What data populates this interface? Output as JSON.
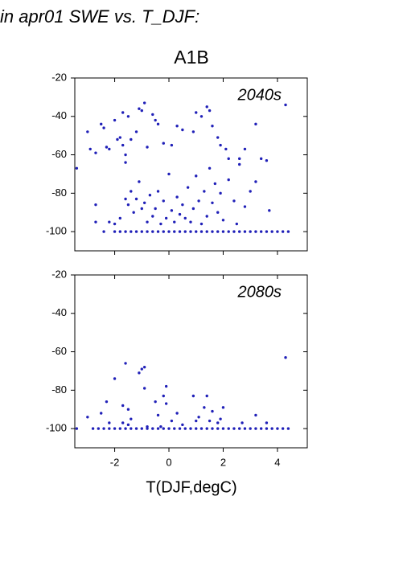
{
  "chart_data": [
    {
      "type": "scatter",
      "title": "in apr01 SWE vs. T_DJF:",
      "subtitle": "A1B",
      "annotation": "2040s",
      "color": "#2020b8",
      "xlim": [
        -3.47,
        5.1
      ],
      "ylim": [
        -110,
        -20
      ],
      "xticks": [
        -2,
        0,
        2,
        4
      ],
      "yticks": [
        -100,
        -80,
        -60,
        -40,
        -20
      ],
      "x": [
        -3.4,
        -3.0,
        -2.9,
        -2.7,
        -2.5,
        -2.4,
        -2.3,
        -2.2,
        -2.0,
        -1.9,
        -1.8,
        -1.7,
        -1.7,
        -1.6,
        -1.6,
        -1.5,
        -1.4,
        -1.2,
        -1.1,
        -1.0,
        -0.9,
        -0.8,
        -0.6,
        -0.5,
        -0.4,
        -0.2,
        0.1,
        0.3,
        0.5,
        0.9,
        1.0,
        1.2,
        1.4,
        1.5,
        1.6,
        1.8,
        1.9,
        2.1,
        2.2,
        2.6,
        2.8,
        3.2,
        3.4,
        3.6,
        4.3,
        -2.7,
        -2.2,
        -2.0,
        -1.8,
        -1.6,
        -1.5,
        -1.4,
        -1.3,
        -1.2,
        -1.1,
        -1.0,
        -0.9,
        -0.8,
        -0.7,
        -0.6,
        -0.5,
        -0.4,
        -0.3,
        -0.2,
        -0.1,
        0.0,
        0.1,
        0.2,
        0.3,
        0.4,
        0.5,
        0.6,
        0.7,
        0.8,
        0.9,
        1.0,
        1.1,
        1.2,
        1.3,
        1.4,
        1.5,
        1.6,
        1.7,
        1.8,
        1.9,
        2.0,
        2.2,
        2.4,
        2.5,
        2.6,
        2.8,
        3.0,
        3.2,
        3.7,
        -2.7,
        -2.4,
        -2.0,
        -1.8,
        -1.6,
        -1.4,
        -1.2,
        -1.0,
        -0.8,
        -0.6,
        -0.4,
        -0.2,
        0.0,
        0.2,
        0.4,
        0.6,
        0.8,
        1.0,
        1.2,
        1.4,
        1.6,
        1.8,
        2.0,
        2.2,
        2.4,
        2.6,
        2.8,
        3.0,
        3.2,
        3.4,
        3.6,
        3.8,
        4.0,
        4.2,
        4.4
      ],
      "values": [
        -67,
        -48,
        -57,
        -59,
        -44,
        -46,
        -56,
        -57,
        -42,
        -52,
        -51,
        -38,
        -55,
        -60,
        -64,
        -40,
        -52,
        -48,
        -36,
        -37,
        -33,
        -56,
        -39,
        -42,
        -44,
        -54,
        -55,
        -45,
        -47,
        -48,
        -38,
        -40,
        -35,
        -37,
        -45,
        -51,
        -55,
        -57,
        -62,
        -62,
        -57,
        -44,
        -62,
        -63,
        -34,
        -86,
        -95,
        -96,
        -93,
        -83,
        -86,
        -79,
        -90,
        -83,
        -74,
        -88,
        -85,
        -95,
        -81,
        -92,
        -88,
        -79,
        -96,
        -84,
        -93,
        -70,
        -89,
        -95,
        -82,
        -91,
        -86,
        -93,
        -77,
        -95,
        -88,
        -71,
        -84,
        -96,
        -79,
        -92,
        -67,
        -85,
        -75,
        -90,
        -80,
        -94,
        -73,
        -84,
        -96,
        -65,
        -87,
        -79,
        -74,
        -89,
        -95,
        -100,
        -100,
        -100,
        -100,
        -100,
        -100,
        -100,
        -100,
        -100,
        -100,
        -100,
        -100,
        -100,
        -100,
        -100,
        -100,
        -100,
        -100,
        -100,
        -100,
        -100,
        -100,
        -100,
        -100,
        -100,
        -100,
        -100,
        -100,
        -100,
        -100,
        -100,
        -100,
        -100,
        -100
      ]
    },
    {
      "type": "scatter",
      "annotation": "2080s",
      "x_label": "T(DJF,degC)",
      "color": "#2020b8",
      "xlim": [
        -3.47,
        5.1
      ],
      "ylim": [
        -110,
        -20
      ],
      "xticks": [
        -2,
        0,
        2,
        4
      ],
      "yticks": [
        -100,
        -80,
        -60,
        -40,
        -20
      ],
      "x": [
        -3.0,
        -2.5,
        -2.3,
        -2.2,
        -2.0,
        -1.7,
        -1.7,
        -1.6,
        -1.5,
        -1.5,
        -1.4,
        -1.1,
        -1.0,
        -0.9,
        -0.9,
        -0.8,
        -0.5,
        -0.4,
        -0.3,
        -0.2,
        -0.1,
        -0.1,
        0.1,
        0.3,
        0.5,
        0.9,
        1.0,
        1.1,
        1.3,
        1.4,
        1.5,
        1.6,
        1.8,
        1.9,
        2.0,
        2.7,
        3.2,
        3.6,
        4.3,
        -3.4,
        -2.8,
        -2.6,
        -2.4,
        -2.2,
        -2.0,
        -1.8,
        -1.6,
        -1.4,
        -1.2,
        -1.0,
        -0.8,
        -0.6,
        -0.4,
        -0.2,
        0.0,
        0.2,
        0.4,
        0.6,
        0.8,
        1.0,
        1.2,
        1.4,
        1.6,
        1.8,
        2.0,
        2.2,
        2.4,
        2.6,
        2.8,
        3.0,
        3.2,
        3.4,
        3.6,
        3.8,
        4.0,
        4.2,
        4.4
      ],
      "values": [
        -94,
        -92,
        -86,
        -97,
        -74,
        -97,
        -88,
        -66,
        -90,
        -98,
        -95,
        -71,
        -69,
        -68,
        -79,
        -99,
        -86,
        -93,
        -99,
        -83,
        -78,
        -87,
        -96,
        -92,
        -98,
        -83,
        -96,
        -94,
        -89,
        -83,
        -96,
        -91,
        -97,
        -95,
        -89,
        -97,
        -93,
        -97,
        -63,
        -100,
        -100,
        -100,
        -100,
        -100,
        -100,
        -100,
        -100,
        -100,
        -100,
        -100,
        -100,
        -100,
        -100,
        -100,
        -100,
        -100,
        -100,
        -100,
        -100,
        -100,
        -100,
        -100,
        -100,
        -100,
        -100,
        -100,
        -100,
        -100,
        -100,
        -100,
        -100,
        -100,
        -100,
        -100,
        -100,
        -100,
        -100
      ]
    }
  ]
}
